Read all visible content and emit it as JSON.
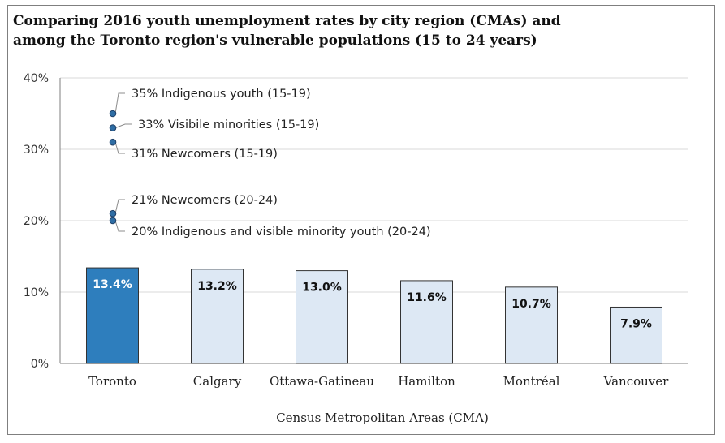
{
  "chart_data": {
    "type": "bar",
    "title": "Comparing 2016 youth unemployment rates by city region (CMAs) and among the Toronto region's vulnerable populations (15 to 24 years)",
    "title_lines": [
      "Comparing 2016 youth unemployment rates by city region (CMAs) and",
      "among the Toronto region's vulnerable populations (15 to 24 years)"
    ],
    "categories": [
      "Toronto",
      "Calgary",
      "Ottawa-Gatineau",
      "Hamilton",
      "Montréal",
      "Vancouver"
    ],
    "values": [
      13.4,
      13.2,
      13.0,
      11.6,
      10.7,
      7.9
    ],
    "data_labels": [
      "13.4%",
      "13.2%",
      "13.0%",
      "11.6%",
      "10.7%",
      "7.9%"
    ],
    "xlabel": "Census Metropolitan Areas (CMA)",
    "ylabel": "",
    "ylim": [
      0,
      40
    ],
    "yticks": [
      0,
      10,
      20,
      30,
      40
    ],
    "ytick_labels": [
      "0%",
      "10%",
      "20%",
      "30%",
      "40%"
    ],
    "grid": true,
    "highlight_category": "Toronto",
    "colors": {
      "highlight": "#2e7ebd",
      "bar": "#dde8f4",
      "bar_border": "#333333",
      "grid": "#d9d9d9",
      "point": "#2e6da4"
    },
    "annotations": [
      {
        "value": 35,
        "text": "35% Indigenous youth (15-19)"
      },
      {
        "value": 33,
        "text": "33% Visibile minorities (15-19)"
      },
      {
        "value": 31,
        "text": "31% Newcomers (15-19)"
      },
      {
        "value": 21,
        "text": "21% Newcomers (20-24)"
      },
      {
        "value": 20,
        "text": "20% Indigenous and visible minority youth (20-24)"
      }
    ]
  }
}
